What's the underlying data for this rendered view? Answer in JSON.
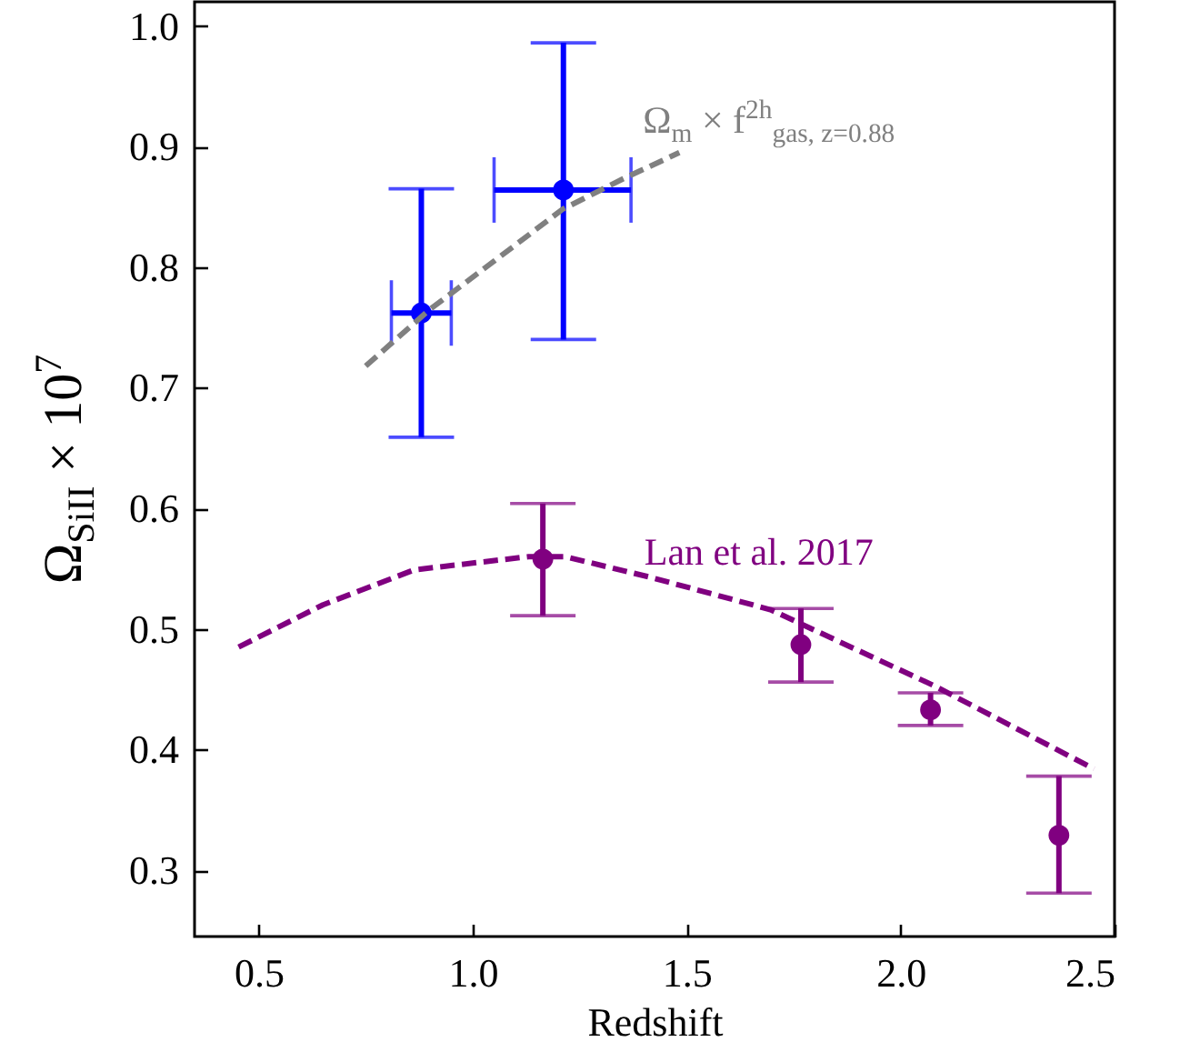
{
  "chart_data": {
    "type": "scatter",
    "xlabel": "Redshift",
    "ylabel": "Ω$_{SiII}$ × 10$^{7}$",
    "xlim": [
      0.35,
      2.5
    ],
    "ylim": [
      0.245,
      1.02
    ],
    "xticks": [
      0.5,
      {
        "value": 1,
        "label": "1.0"
      },
      1.5,
      {
        "value": 2,
        "label": "2.0"
      },
      2.5
    ],
    "yticks": [
      0.3,
      0.4,
      0.5,
      0.6,
      0.7,
      0.8,
      0.9,
      {
        "value": 1,
        "label": "1.0"
      }
    ],
    "series": [
      {
        "color": "#0000ff",
        "marker": "circle",
        "x": [
          0.88,
          1.212
        ],
        "values": [
          0.762,
          0.864
        ],
        "errors": [
          [
            0.659,
            0.865
          ],
          [
            0.74,
            0.986
          ]
        ],
        "xerrors": [
          [
            0.81,
            0.95
          ],
          [
            1.05,
            1.37
          ]
        ]
      },
      {
        "type": "line",
        "name": "Ω$_{m}$ × f$^{2h}$$_{gas, z=0.88}$",
        "color": "#808080",
        "line_style": "dashed",
        "x": [
          0.75,
          0.9,
          1.05,
          1.21,
          1.35,
          1.483
        ],
        "values": [
          0.718,
          0.765,
          0.805,
          0.848,
          0.873,
          0.895
        ]
      },
      {
        "color": "#800080",
        "marker": "circle",
        "x": [
          1.164,
          1.767,
          2.07,
          2.37
        ],
        "values": [
          0.558,
          0.487,
          0.433,
          0.329
        ],
        "errors": [
          [
            0.511,
            0.604
          ],
          [
            0.456,
            0.517
          ],
          [
            0.42,
            0.447
          ],
          [
            0.281,
            0.378
          ]
        ]
      },
      {
        "type": "line",
        "name": "Lan et al. 2017",
        "color": "#800080",
        "line_style": "dashed",
        "x": [
          0.453,
          0.65,
          0.863,
          1.131,
          1.216,
          1.414,
          1.696,
          2.078,
          2.452
        ],
        "values": [
          0.485,
          0.52,
          0.549,
          0.56,
          0.56,
          0.543,
          0.516,
          0.453,
          0.384
        ]
      }
    ]
  }
}
